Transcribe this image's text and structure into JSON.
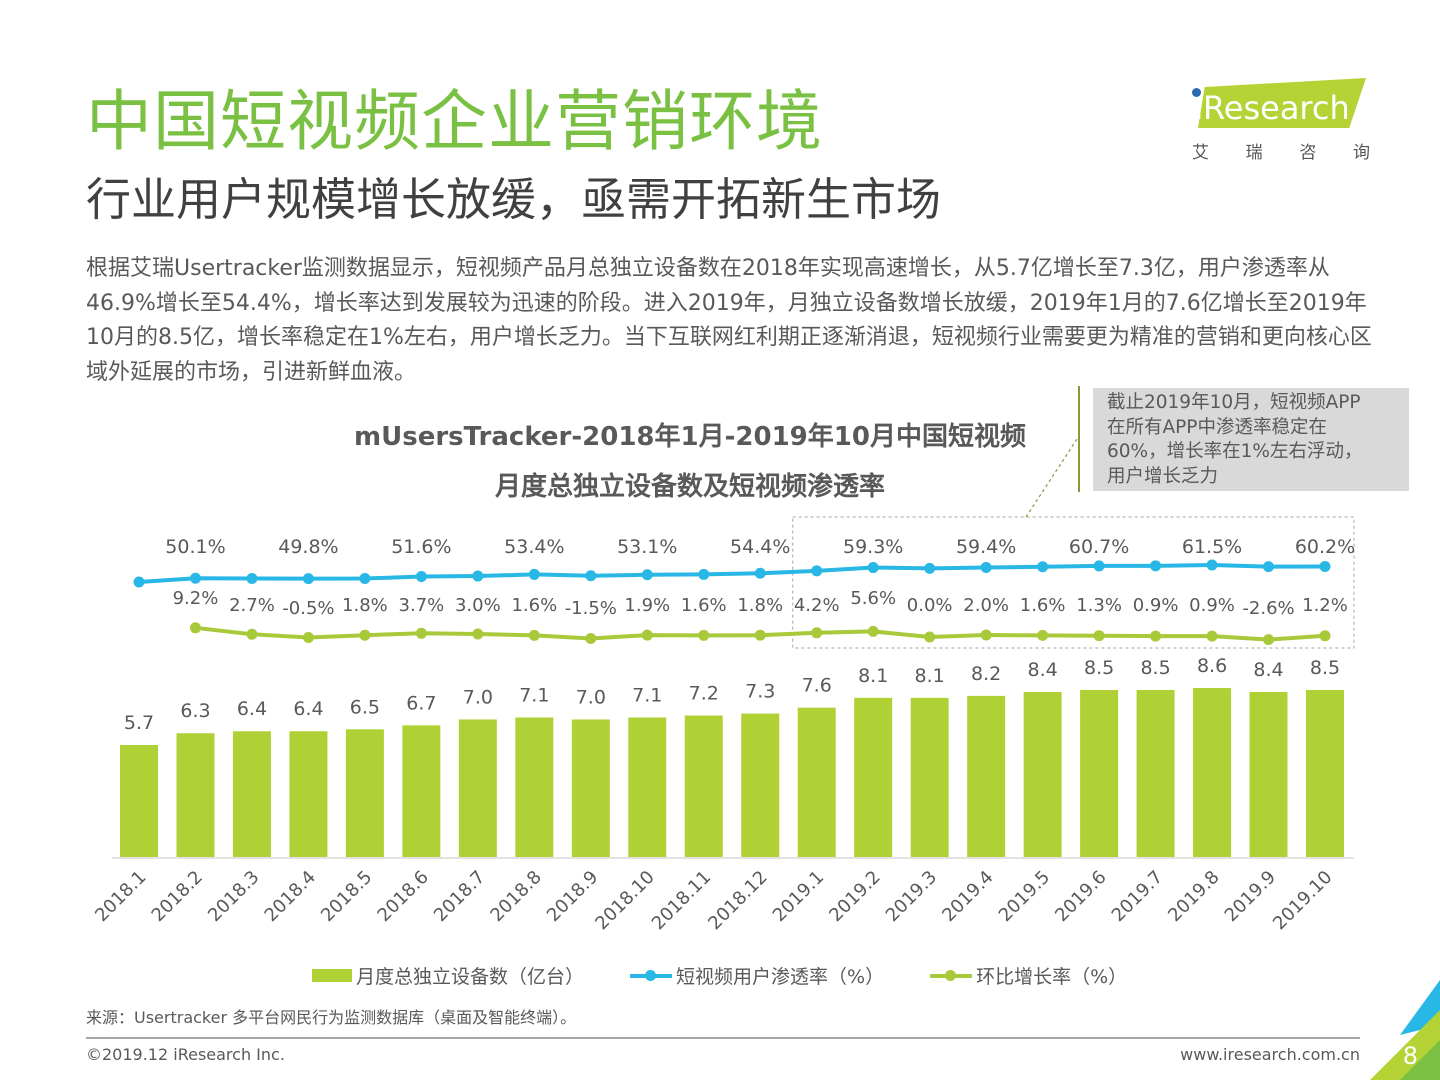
{
  "header": {
    "title": "中国短视频企业营销环境",
    "subtitle": "行业用户规模增长放缓，亟需开拓新生市场",
    "logo_text": "Research",
    "logo_cn": [
      "艾",
      "瑞",
      "咨",
      "询"
    ]
  },
  "body_paragraph": "根据艾瑞Usertracker监测数据显示，短视频产品月总独立设备数在2018年实现高速增长，从5.7亿增长至7.3亿，用户渗透率从46.9%增长至54.4%，增长率达到发展较为迅速的阶段。进入2019年，月独立设备数增长放缓，2019年1月的7.6亿增长至2019年10月的8.5亿，增长率稳定在1%左右，用户增长乏力。当下互联网红利期正逐渐消退，短视频行业需要更为精准的营销和更向核心区域外延展的市场，引进新鲜血液。",
  "callout": {
    "lines": [
      "截止2019年10月，短视频APP",
      "在所有APP中渗透率稳定在",
      "60%，增长率在1%左右浮动，",
      "用户增长乏力"
    ]
  },
  "chart_data": {
    "type": "bar",
    "title_line1": "mUsersTracker-2018年1月-2019年10月中国短视频",
    "title_line2": "月度总独立设备数及短视频渗透率",
    "categories": [
      "2018.1",
      "2018.2",
      "2018.3",
      "2018.4",
      "2018.5",
      "2018.6",
      "2018.7",
      "2018.8",
      "2018.9",
      "2018.10",
      "2018.11",
      "2018.12",
      "2019.1",
      "2019.2",
      "2019.3",
      "2019.4",
      "2019.5",
      "2019.6",
      "2019.7",
      "2019.8",
      "2019.9",
      "2019.10"
    ],
    "series": [
      {
        "name": "月度总独立设备数（亿台）",
        "type": "bar",
        "color": "#b0d135",
        "values": [
          5.7,
          6.3,
          6.4,
          6.4,
          6.5,
          6.7,
          7.0,
          7.1,
          7.0,
          7.1,
          7.2,
          7.3,
          7.6,
          8.1,
          8.1,
          8.2,
          8.4,
          8.5,
          8.5,
          8.6,
          8.4,
          8.5
        ]
      },
      {
        "name": "短视频用户渗透率（%）",
        "type": "line",
        "color": "#29b8e5",
        "values": [
          46.9,
          50.1,
          49.9,
          49.8,
          49.9,
          51.6,
          52.0,
          53.4,
          52.3,
          53.1,
          53.4,
          54.4,
          56.5,
          59.3,
          58.6,
          59.4,
          60.0,
          60.7,
          60.8,
          61.5,
          60.1,
          60.2
        ],
        "labels": [
          null,
          "50.1%",
          null,
          "49.8%",
          null,
          "51.6%",
          null,
          "53.4%",
          null,
          "53.1%",
          null,
          "54.4%",
          null,
          "59.3%",
          null,
          "59.4%",
          null,
          "60.7%",
          null,
          "61.5%",
          null,
          "60.2%"
        ]
      },
      {
        "name": "环比增长率（%）",
        "type": "line",
        "color": "#a8c93a",
        "values": [
          null,
          9.2,
          2.7,
          -0.5,
          1.8,
          3.7,
          3.0,
          1.6,
          -1.5,
          1.9,
          1.6,
          1.8,
          4.2,
          5.6,
          0.0,
          2.0,
          1.6,
          1.3,
          0.9,
          0.9,
          -2.6,
          1.2
        ],
        "labels": [
          null,
          "9.2%",
          "2.7%",
          "-0.5%",
          "1.8%",
          "3.7%",
          "3.0%",
          "1.6%",
          "-1.5%",
          "1.9%",
          "1.6%",
          "1.8%",
          "4.2%",
          "5.6%",
          "0.0%",
          "2.0%",
          "1.6%",
          "1.3%",
          "0.9%",
          "0.9%",
          "-2.6%",
          "1.2%"
        ]
      }
    ],
    "highlight_range": [
      "2019.1",
      "2019.10"
    ],
    "ylim_bar": [
      0,
      9
    ],
    "grid": false,
    "legend_position": "bottom"
  },
  "footer": {
    "source": "来源：Usertracker 多平台网民行为监测数据库（桌面及智能终端）。",
    "copyright": "©2019.12 iResearch Inc.",
    "website": "www.iresearch.com.cn",
    "page_number": "8"
  }
}
